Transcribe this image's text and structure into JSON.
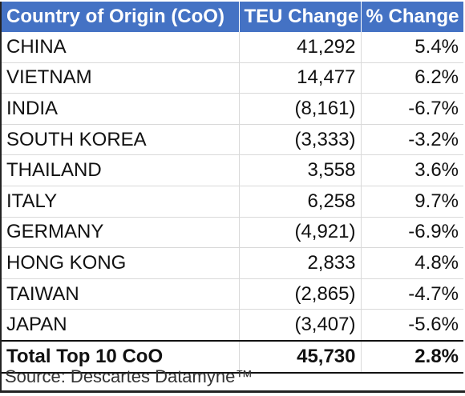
{
  "chart_data": {
    "type": "table",
    "columns": [
      "Country of Origin (CoO)",
      "TEU Change",
      "% Change"
    ],
    "rows": [
      {
        "country": "CHINA",
        "teu_change": "41,292",
        "pct_change": "5.4%"
      },
      {
        "country": "VIETNAM",
        "teu_change": "14,477",
        "pct_change": "6.2%"
      },
      {
        "country": "INDIA",
        "teu_change": "(8,161)",
        "pct_change": "-6.7%"
      },
      {
        "country": "SOUTH KOREA",
        "teu_change": "(3,333)",
        "pct_change": "-3.2%"
      },
      {
        "country": "THAILAND",
        "teu_change": "3,558",
        "pct_change": "3.6%"
      },
      {
        "country": "ITALY",
        "teu_change": "6,258",
        "pct_change": "9.7%"
      },
      {
        "country": "GERMANY",
        "teu_change": "(4,921)",
        "pct_change": "-6.9%"
      },
      {
        "country": "HONG KONG",
        "teu_change": "2,833",
        "pct_change": "4.8%"
      },
      {
        "country": "TAIWAN",
        "teu_change": "(2,865)",
        "pct_change": "-4.7%"
      },
      {
        "country": "JAPAN",
        "teu_change": "(3,407)",
        "pct_change": "-5.6%"
      }
    ],
    "total": {
      "label": "Total Top 10 CoO",
      "teu_change": "45,730",
      "pct_change": "2.8%"
    },
    "source": "Source: Descartes Datamyne™"
  },
  "colors": {
    "header_bg": "#4472c4",
    "header_text": "#ffffff"
  }
}
